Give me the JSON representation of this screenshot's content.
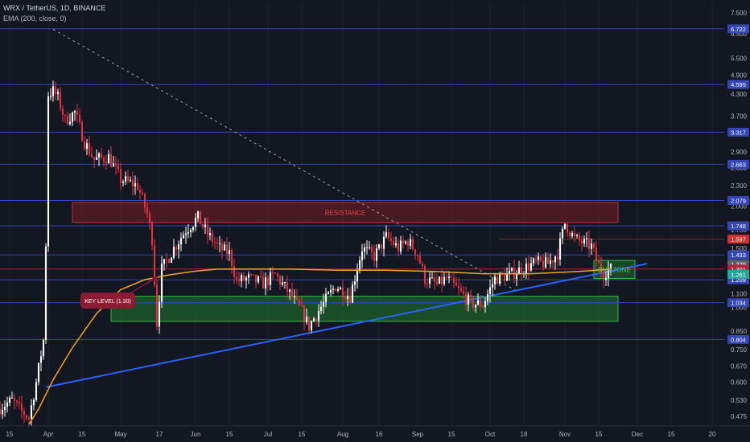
{
  "header": {
    "symbol_line": "WRX / TetherUS, 1D, BINANCE",
    "indicator_line": "EMA (200, close, 0)"
  },
  "colors": {
    "background": "#131722",
    "up": "#ffffff",
    "down": "#e0333e",
    "ema": "#f5a623",
    "trendline": "#2962ff",
    "hline": "#3447b5",
    "resistance_fill": "#7a1b22",
    "buyzone_fill": "#1e7a2e",
    "keylevel": "#b5213a"
  },
  "chart_data": {
    "type": "candlestick",
    "y_scale": "log",
    "ylim": [
      0.445,
      8.1
    ],
    "xlim_days": [
      -20,
      280
    ],
    "x_tick_labels": [
      {
        "day": -16,
        "label": "15"
      },
      {
        "day": 0,
        "label": "Apr"
      },
      {
        "day": 14,
        "label": "15"
      },
      {
        "day": 30,
        "label": "May"
      },
      {
        "day": 46,
        "label": "17"
      },
      {
        "day": 61,
        "label": "Jun"
      },
      {
        "day": 75,
        "label": "15"
      },
      {
        "day": 91,
        "label": "Jul"
      },
      {
        "day": 105,
        "label": "15"
      },
      {
        "day": 122,
        "label": "Aug"
      },
      {
        "day": 137,
        "label": "16"
      },
      {
        "day": 153,
        "label": "Sep"
      },
      {
        "day": 167,
        "label": "15"
      },
      {
        "day": 183,
        "label": "Oct"
      },
      {
        "day": 197,
        "label": "18"
      },
      {
        "day": 214,
        "label": "Nov"
      },
      {
        "day": 228,
        "label": "15"
      },
      {
        "day": 244,
        "label": "Dec"
      },
      {
        "day": 258,
        "label": "15"
      },
      {
        "day": 275,
        "label": "20"
      }
    ],
    "y_tick_labels": [
      "7.500",
      "6.500",
      "5.500",
      "4.900",
      "4.300",
      "3.700",
      "3.300",
      "2.900",
      "2.600",
      "2.300",
      "2.000",
      "1.700",
      "1.500",
      "1.300",
      "1.100",
      "1.000",
      "0.850",
      "0.750",
      "0.670",
      "0.600",
      "0.530",
      "0.475"
    ],
    "horizontal_levels": [
      "6.722",
      "4.595",
      "3.317",
      "2.663",
      "2.079",
      "1.748",
      "1.433",
      "1.209",
      "1.034",
      "0.804"
    ],
    "price_badges": [
      {
        "label": "1.597",
        "color": "#d32f2f"
      },
      {
        "label": "1.329",
        "color": "#5d606b"
      },
      {
        "label": "1.301",
        "color": "#b5213a"
      },
      {
        "label": "1.261",
        "color": "#26a69a"
      }
    ],
    "key_level": 1.301,
    "annotations": {
      "resistance": "RESISTANCE",
      "buy_zone": "BUY ZONE",
      "key_level": "KEY LEVEL (1.30)"
    },
    "zones": {
      "resistance": {
        "day_from": 10,
        "day_to": 236,
        "low": 1.79,
        "high": 2.05
      },
      "support": {
        "day_from": 26,
        "day_to": 236,
        "low": 0.91,
        "high": 1.08
      },
      "buy_zone": {
        "day_from": 226,
        "day_to": 243,
        "low": 1.22,
        "high": 1.38
      }
    },
    "trendlines": {
      "descending": {
        "from": {
          "day": 2,
          "price": 6.7
        },
        "to": {
          "day": 194,
          "price": 1.12
        }
      },
      "ascending": {
        "from": {
          "day": -1,
          "price": 0.58
        },
        "to": {
          "day": 248,
          "price": 1.35
        }
      }
    },
    "price_path": [
      {
        "day": -20,
        "price": 0.5
      },
      {
        "day": -14,
        "price": 0.53
      },
      {
        "day": -10,
        "price": 0.49
      },
      {
        "day": -7,
        "price": 0.47
      },
      {
        "day": -4,
        "price": 0.6
      },
      {
        "day": -1,
        "price": 0.8
      },
      {
        "day": 0,
        "price": 1.55
      },
      {
        "day": 1,
        "price": 4.3
      },
      {
        "day": 3,
        "price": 4.4
      },
      {
        "day": 5,
        "price": 4.2
      },
      {
        "day": 8,
        "price": 3.6
      },
      {
        "day": 12,
        "price": 3.8
      },
      {
        "day": 16,
        "price": 3.1
      },
      {
        "day": 20,
        "price": 2.75
      },
      {
        "day": 26,
        "price": 2.8
      },
      {
        "day": 31,
        "price": 2.4
      },
      {
        "day": 38,
        "price": 2.3
      },
      {
        "day": 42,
        "price": 1.9
      },
      {
        "day": 44,
        "price": 1.6
      },
      {
        "day": 46,
        "price": 0.9
      },
      {
        "day": 48,
        "price": 1.3
      },
      {
        "day": 53,
        "price": 1.5
      },
      {
        "day": 58,
        "price": 1.7
      },
      {
        "day": 63,
        "price": 1.85
      },
      {
        "day": 67,
        "price": 1.65
      },
      {
        "day": 72,
        "price": 1.5
      },
      {
        "day": 76,
        "price": 1.45
      },
      {
        "day": 79,
        "price": 1.2
      },
      {
        "day": 84,
        "price": 1.22
      },
      {
        "day": 90,
        "price": 1.18
      },
      {
        "day": 95,
        "price": 1.25
      },
      {
        "day": 101,
        "price": 1.1
      },
      {
        "day": 106,
        "price": 0.97
      },
      {
        "day": 109,
        "price": 0.88
      },
      {
        "day": 113,
        "price": 0.98
      },
      {
        "day": 120,
        "price": 1.16
      },
      {
        "day": 126,
        "price": 1.08
      },
      {
        "day": 131,
        "price": 1.5
      },
      {
        "day": 136,
        "price": 1.42
      },
      {
        "day": 141,
        "price": 1.62
      },
      {
        "day": 146,
        "price": 1.5
      },
      {
        "day": 150,
        "price": 1.58
      },
      {
        "day": 154,
        "price": 1.44
      },
      {
        "day": 157,
        "price": 1.22
      },
      {
        "day": 162,
        "price": 1.17
      },
      {
        "day": 166,
        "price": 1.22
      },
      {
        "day": 170,
        "price": 1.14
      },
      {
        "day": 176,
        "price": 1.03
      },
      {
        "day": 181,
        "price": 1.02
      },
      {
        "day": 186,
        "price": 1.22
      },
      {
        "day": 192,
        "price": 1.25
      },
      {
        "day": 197,
        "price": 1.3
      },
      {
        "day": 203,
        "price": 1.36
      },
      {
        "day": 208,
        "price": 1.35
      },
      {
        "day": 212,
        "price": 1.45
      },
      {
        "day": 215,
        "price": 1.78
      },
      {
        "day": 219,
        "price": 1.6
      },
      {
        "day": 223,
        "price": 1.55
      },
      {
        "day": 226,
        "price": 1.52
      },
      {
        "day": 229,
        "price": 1.33
      },
      {
        "day": 231,
        "price": 1.26
      },
      {
        "day": 233,
        "price": 1.3
      }
    ],
    "ema_path": [
      {
        "day": -8,
        "price": 0.45
      },
      {
        "day": -4,
        "price": 0.5
      },
      {
        "day": 2,
        "price": 0.61
      },
      {
        "day": 10,
        "price": 0.76
      },
      {
        "day": 20,
        "price": 0.96
      },
      {
        "day": 30,
        "price": 1.13
      },
      {
        "day": 40,
        "price": 1.21
      },
      {
        "day": 50,
        "price": 1.25
      },
      {
        "day": 60,
        "price": 1.28
      },
      {
        "day": 70,
        "price": 1.3
      },
      {
        "day": 80,
        "price": 1.3
      },
      {
        "day": 100,
        "price": 1.3
      },
      {
        "day": 120,
        "price": 1.29
      },
      {
        "day": 140,
        "price": 1.29
      },
      {
        "day": 160,
        "price": 1.28
      },
      {
        "day": 180,
        "price": 1.26
      },
      {
        "day": 200,
        "price": 1.26
      },
      {
        "day": 220,
        "price": 1.28
      },
      {
        "day": 233,
        "price": 1.3
      }
    ]
  }
}
